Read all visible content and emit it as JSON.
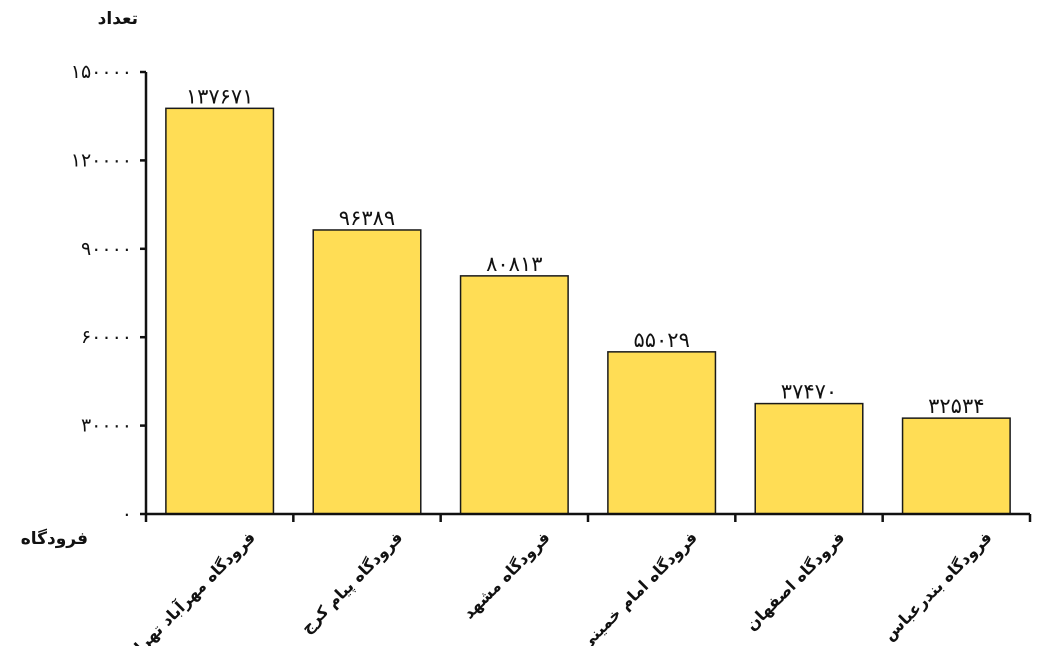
{
  "chart_data": {
    "type": "bar",
    "ylabel": "تعداد",
    "xlabel": "فرودگاه",
    "ylim": [
      0,
      150000
    ],
    "yticks": [
      0,
      30000,
      60000,
      90000,
      120000,
      150000
    ],
    "ytick_labels": [
      "٠",
      "٣٠٠٠٠",
      "۶٠٠٠٠",
      "٩٠٠٠٠",
      "١٢٠٠٠٠",
      "١۵٠٠٠٠"
    ],
    "categories": [
      "فرودگاه مهرآباد تهران",
      "فرودگاه پیام کرج",
      "فرودگاه مشهد",
      "فرودگاه امام خمینی",
      "فرودگاه اصفهان",
      "فرودگاه بندرعباس"
    ],
    "values": [
      137671,
      96389,
      80813,
      55029,
      37470,
      32534
    ],
    "value_labels": [
      "١٣٧۶٧١",
      "٩۶٣٨٩",
      "٨٠٨١٣",
      "۵۵٠٢٩",
      "٣٧۴٧٠",
      "٣٢۵٣۴"
    ],
    "bar_color": "#FFDD55",
    "bar_edge_color": "#1a1a1a",
    "grid": false,
    "legend": "none"
  }
}
